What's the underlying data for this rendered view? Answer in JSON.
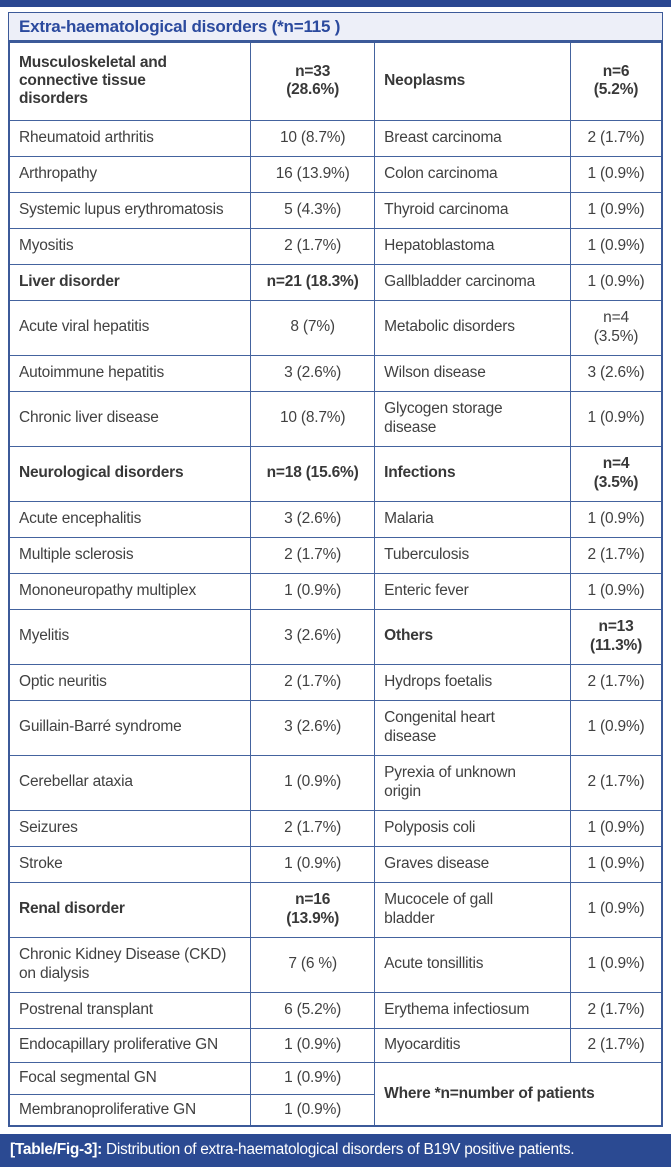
{
  "title": "Extra-haematological disorders (*n=115 )",
  "caption": {
    "label": "[Table/Fig-3]:",
    "text": " Distribution of extra-haematological disorders of B19V positive patients."
  },
  "colors": {
    "accent_blue": "#2a4791",
    "caption_bg": "#2b4a92",
    "title_text": "#2b4a9e",
    "title_bg": "#edeff8",
    "border": "#44639e",
    "cell_text": "#414141"
  },
  "table": {
    "col_widths_pct": [
      37,
      19,
      30,
      14
    ],
    "rows": [
      {
        "h": 78,
        "cells": [
          {
            "text": "Musculoskeletal and\nconnective tissue\ndisorders",
            "bold": true
          },
          {
            "text": "n=33\n(28.6%)",
            "bold": true,
            "align": "center"
          },
          {
            "text": "Neoplasms",
            "bold": true
          },
          {
            "text": "n=6\n(5.2%)",
            "bold": true,
            "align": "center"
          }
        ]
      },
      {
        "h": 36,
        "cells": [
          {
            "text": "Rheumatoid arthritis"
          },
          {
            "text": "10 (8.7%)",
            "align": "center"
          },
          {
            "text": "Breast carcinoma"
          },
          {
            "text": "2 (1.7%)",
            "align": "center"
          }
        ]
      },
      {
        "h": 36,
        "cells": [
          {
            "text": "Arthropathy"
          },
          {
            "text": "16 (13.9%)",
            "align": "center"
          },
          {
            "text": "Colon carcinoma"
          },
          {
            "text": "1 (0.9%)",
            "align": "center"
          }
        ]
      },
      {
        "h": 36,
        "cells": [
          {
            "text": "Systemic lupus erythromatosis"
          },
          {
            "text": "5 (4.3%)",
            "align": "center"
          },
          {
            "text": "Thyroid carcinoma"
          },
          {
            "text": "1 (0.9%)",
            "align": "center"
          }
        ]
      },
      {
        "h": 36,
        "cells": [
          {
            "text": "Myositis"
          },
          {
            "text": "2 (1.7%)",
            "align": "center"
          },
          {
            "text": "Hepatoblastoma"
          },
          {
            "text": "1 (0.9%)",
            "align": "center"
          }
        ]
      },
      {
        "h": 36,
        "cells": [
          {
            "text": "Liver disorder",
            "bold": true
          },
          {
            "text": "n=21 (18.3%)",
            "bold": true,
            "align": "center"
          },
          {
            "text": "Gallbladder carcinoma"
          },
          {
            "text": "1 (0.9%)",
            "align": "center"
          }
        ]
      },
      {
        "h": 55,
        "cells": [
          {
            "text": "Acute viral hepatitis"
          },
          {
            "text": "8 (7%)",
            "align": "center"
          },
          {
            "text": "Metabolic disorders"
          },
          {
            "text": "n=4\n(3.5%)",
            "align": "center"
          }
        ]
      },
      {
        "h": 36,
        "cells": [
          {
            "text": "Autoimmune hepatitis"
          },
          {
            "text": "3 (2.6%)",
            "align": "center"
          },
          {
            "text": "Wilson disease"
          },
          {
            "text": "3 (2.6%)",
            "align": "center"
          }
        ]
      },
      {
        "h": 55,
        "cells": [
          {
            "text": "Chronic liver disease"
          },
          {
            "text": "10 (8.7%)",
            "align": "center"
          },
          {
            "text": "Glycogen storage\ndisease"
          },
          {
            "text": "1 (0.9%)",
            "align": "center"
          }
        ]
      },
      {
        "h": 55,
        "cells": [
          {
            "text": "Neurological disorders",
            "bold": true
          },
          {
            "text": "n=18 (15.6%)",
            "bold": true,
            "align": "center"
          },
          {
            "text": "Infections",
            "bold": true
          },
          {
            "text": "n=4\n(3.5%)",
            "bold": true,
            "align": "center"
          }
        ]
      },
      {
        "h": 36,
        "cells": [
          {
            "text": "Acute encephalitis"
          },
          {
            "text": "3 (2.6%)",
            "align": "center"
          },
          {
            "text": "Malaria"
          },
          {
            "text": "1 (0.9%)",
            "align": "center"
          }
        ]
      },
      {
        "h": 36,
        "cells": [
          {
            "text": "Multiple sclerosis"
          },
          {
            "text": "2 (1.7%)",
            "align": "center"
          },
          {
            "text": "Tuberculosis"
          },
          {
            "text": "2 (1.7%)",
            "align": "center"
          }
        ]
      },
      {
        "h": 36,
        "cells": [
          {
            "text": "Mononeuropathy multiplex"
          },
          {
            "text": "1 (0.9%)",
            "align": "center"
          },
          {
            "text": "Enteric fever"
          },
          {
            "text": "1 (0.9%)",
            "align": "center"
          }
        ]
      },
      {
        "h": 55,
        "cells": [
          {
            "text": "Myelitis"
          },
          {
            "text": "3 (2.6%)",
            "align": "center"
          },
          {
            "text": "Others",
            "bold": true
          },
          {
            "text": "n=13\n(11.3%)",
            "bold": true,
            "align": "center"
          }
        ]
      },
      {
        "h": 36,
        "cells": [
          {
            "text": "Optic neuritis"
          },
          {
            "text": "2 (1.7%)",
            "align": "center"
          },
          {
            "text": "Hydrops foetalis"
          },
          {
            "text": "2 (1.7%)",
            "align": "center"
          }
        ]
      },
      {
        "h": 55,
        "cells": [
          {
            "text": "Guillain-Barré syndrome"
          },
          {
            "text": "3 (2.6%)",
            "align": "center"
          },
          {
            "text": "Congenital heart\ndisease"
          },
          {
            "text": "1 (0.9%)",
            "align": "center"
          }
        ]
      },
      {
        "h": 55,
        "cells": [
          {
            "text": "Cerebellar ataxia"
          },
          {
            "text": "1 (0.9%)",
            "align": "center"
          },
          {
            "text": "Pyrexia of unknown\norigin"
          },
          {
            "text": "2 (1.7%)",
            "align": "center"
          }
        ]
      },
      {
        "h": 36,
        "cells": [
          {
            "text": "Seizures"
          },
          {
            "text": "2 (1.7%)",
            "align": "center"
          },
          {
            "text": "Polyposis coli"
          },
          {
            "text": "1 (0.9%)",
            "align": "center"
          }
        ]
      },
      {
        "h": 36,
        "cells": [
          {
            "text": "Stroke"
          },
          {
            "text": "1 (0.9%)",
            "align": "center"
          },
          {
            "text": "Graves disease"
          },
          {
            "text": "1 (0.9%)",
            "align": "center"
          }
        ]
      },
      {
        "h": 55,
        "cells": [
          {
            "text": "Renal disorder",
            "bold": true
          },
          {
            "text": "n=16\n(13.9%)",
            "bold": true,
            "align": "center"
          },
          {
            "text": "Mucocele of gall\nbladder"
          },
          {
            "text": "1 (0.9%)",
            "align": "center"
          }
        ]
      },
      {
        "h": 55,
        "cells": [
          {
            "text": "Chronic Kidney Disease (CKD)\non dialysis"
          },
          {
            "text": "7 (6 %)",
            "align": "center"
          },
          {
            "text": "Acute tonsillitis"
          },
          {
            "text": "1 (0.9%)",
            "align": "center"
          }
        ]
      },
      {
        "h": 36,
        "cells": [
          {
            "text": "Postrenal transplant"
          },
          {
            "text": "6 (5.2%)",
            "align": "center"
          },
          {
            "text": "Erythema infectiosum"
          },
          {
            "text": "2 (1.7%)",
            "align": "center"
          }
        ]
      },
      {
        "h": 34,
        "cells": [
          {
            "text": "Endocapillary proliferative GN"
          },
          {
            "text": "1 (0.9%)",
            "align": "center"
          },
          {
            "text": "Myocarditis"
          },
          {
            "text": "2 (1.7%)",
            "align": "center"
          }
        ]
      },
      {
        "h": 32,
        "cells": [
          {
            "text": "Focal segmental GN"
          },
          {
            "text": "1 (0.9%)",
            "align": "center"
          },
          {
            "text": "Where *n=number of patients",
            "bold": true,
            "colspan": 2,
            "rowspan": 2
          }
        ]
      },
      {
        "h": 32,
        "cells": [
          {
            "text": "Membranoproliferative GN"
          },
          {
            "text": "1 (0.9%)",
            "align": "center"
          }
        ]
      }
    ]
  }
}
